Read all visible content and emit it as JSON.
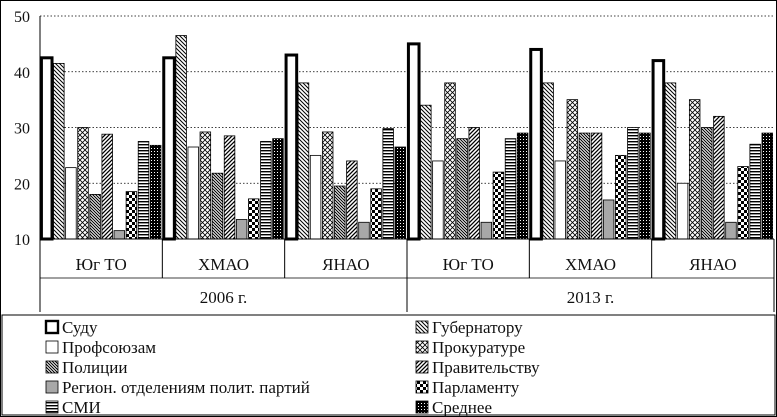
{
  "chart_data": {
    "type": "bar",
    "title": "",
    "xlabel": "",
    "ylabel": "",
    "ylim": [
      10,
      50
    ],
    "yticks": [
      10,
      20,
      30,
      40,
      50
    ],
    "grid": "horizontal-dotted",
    "legend_position": "bottom",
    "groups": [
      {
        "label": "2006 г.",
        "regions": [
          "Юг ТО",
          "ХМАО",
          "ЯНАО"
        ]
      },
      {
        "label": "2013 г.",
        "regions": [
          "Юг ТО",
          "ХМАО",
          "ЯНАО"
        ]
      }
    ],
    "categories": [
      "Юг ТО",
      "ХМАО",
      "ЯНАО",
      "Юг ТО",
      "ХМАО",
      "ЯНАО"
    ],
    "series": [
      {
        "name": "Суду",
        "pattern": "bold-outline",
        "values": [
          42.5,
          42.5,
          43.0,
          45.0,
          44.0,
          42.0
        ]
      },
      {
        "name": "Губернатору",
        "pattern": "diag-back",
        "values": [
          41.5,
          46.5,
          38.0,
          34.0,
          38.0,
          38.0
        ]
      },
      {
        "name": "Профсоюзам",
        "pattern": "white",
        "values": [
          22.8,
          26.5,
          25.0,
          24.0,
          24.0,
          20.0
        ]
      },
      {
        "name": "Прокуратуре",
        "pattern": "crosshatch",
        "values": [
          30.0,
          29.2,
          29.2,
          38.0,
          35.0,
          35.0
        ]
      },
      {
        "name": "Полиции",
        "pattern": "dense-diag-back",
        "values": [
          18.0,
          21.8,
          19.5,
          28.0,
          29.0,
          30.0
        ]
      },
      {
        "name": "Правительству",
        "pattern": "diag-fwd",
        "values": [
          28.8,
          28.5,
          24.0,
          30.0,
          29.0,
          32.0
        ]
      },
      {
        "name": "Регион. отделениям полит. партий",
        "pattern": "gray",
        "values": [
          11.5,
          13.5,
          13.0,
          13.0,
          17.0,
          13.0
        ]
      },
      {
        "name": "Парламенту",
        "pattern": "checker",
        "values": [
          18.5,
          17.2,
          19.0,
          22.0,
          25.0,
          23.0
        ]
      },
      {
        "name": "СМИ",
        "pattern": "hlines",
        "values": [
          27.5,
          27.5,
          29.8,
          28.0,
          30.0,
          27.0
        ]
      },
      {
        "name": "Среднее",
        "pattern": "black-dots",
        "values": [
          26.8,
          28.0,
          26.5,
          29.0,
          29.0,
          29.0
        ]
      }
    ]
  }
}
